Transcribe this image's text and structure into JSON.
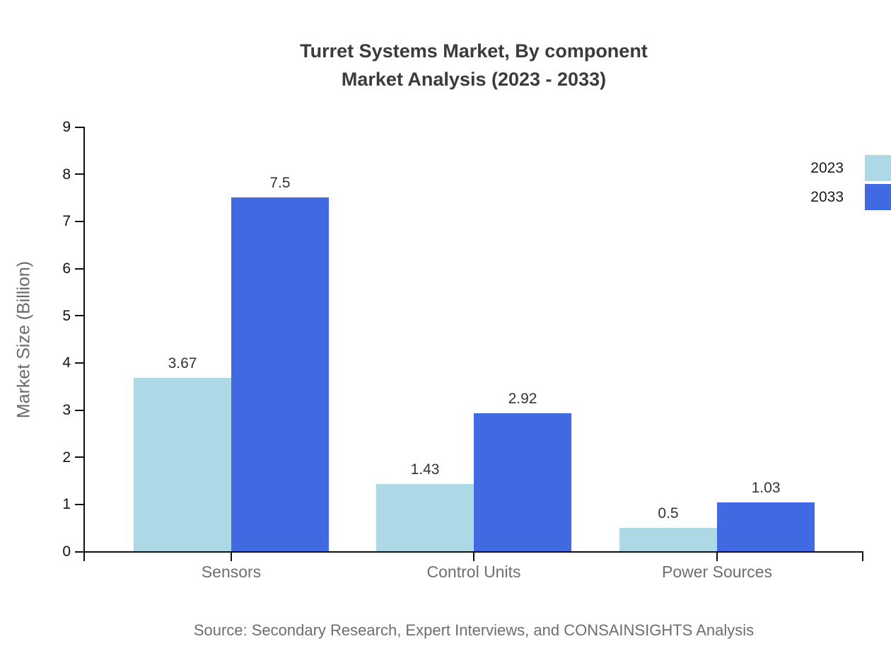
{
  "header": {
    "title_line1": "Turret Systems Market, By component",
    "title_line2": "Market Analysis (2023 - 2033)"
  },
  "chart_data": {
    "type": "bar",
    "title": "Turret Systems Market, By component Market Analysis (2023 - 2033)",
    "categories": [
      "Sensors",
      "Control Units",
      "Power Sources"
    ],
    "series": [
      {
        "name": "2023",
        "color": "#ADD8E6",
        "values": [
          3.67,
          1.43,
          0.5
        ]
      },
      {
        "name": "2033",
        "color": "#4169E1",
        "values": [
          7.5,
          2.92,
          1.03
        ]
      }
    ],
    "xlabel": "",
    "ylabel": "Market Size (Billion)",
    "ylim": [
      0,
      9
    ],
    "yticks": [
      0,
      1,
      2,
      3,
      4,
      5,
      6,
      7,
      8,
      9
    ],
    "grid": false,
    "legend_position": "top-right",
    "value_labels_shown": true
  },
  "footer": {
    "source": "Source: Secondary Research, Expert Interviews, and CONSAINSIGHTS Analysis"
  },
  "colors": {
    "series_2023": "#ADD8E6",
    "series_2033": "#4169E1",
    "axis": "#111111",
    "title_text": "#3b3b3b",
    "muted_text": "#6e6e6e",
    "value_text": "#333333",
    "background": "#ffffff"
  }
}
